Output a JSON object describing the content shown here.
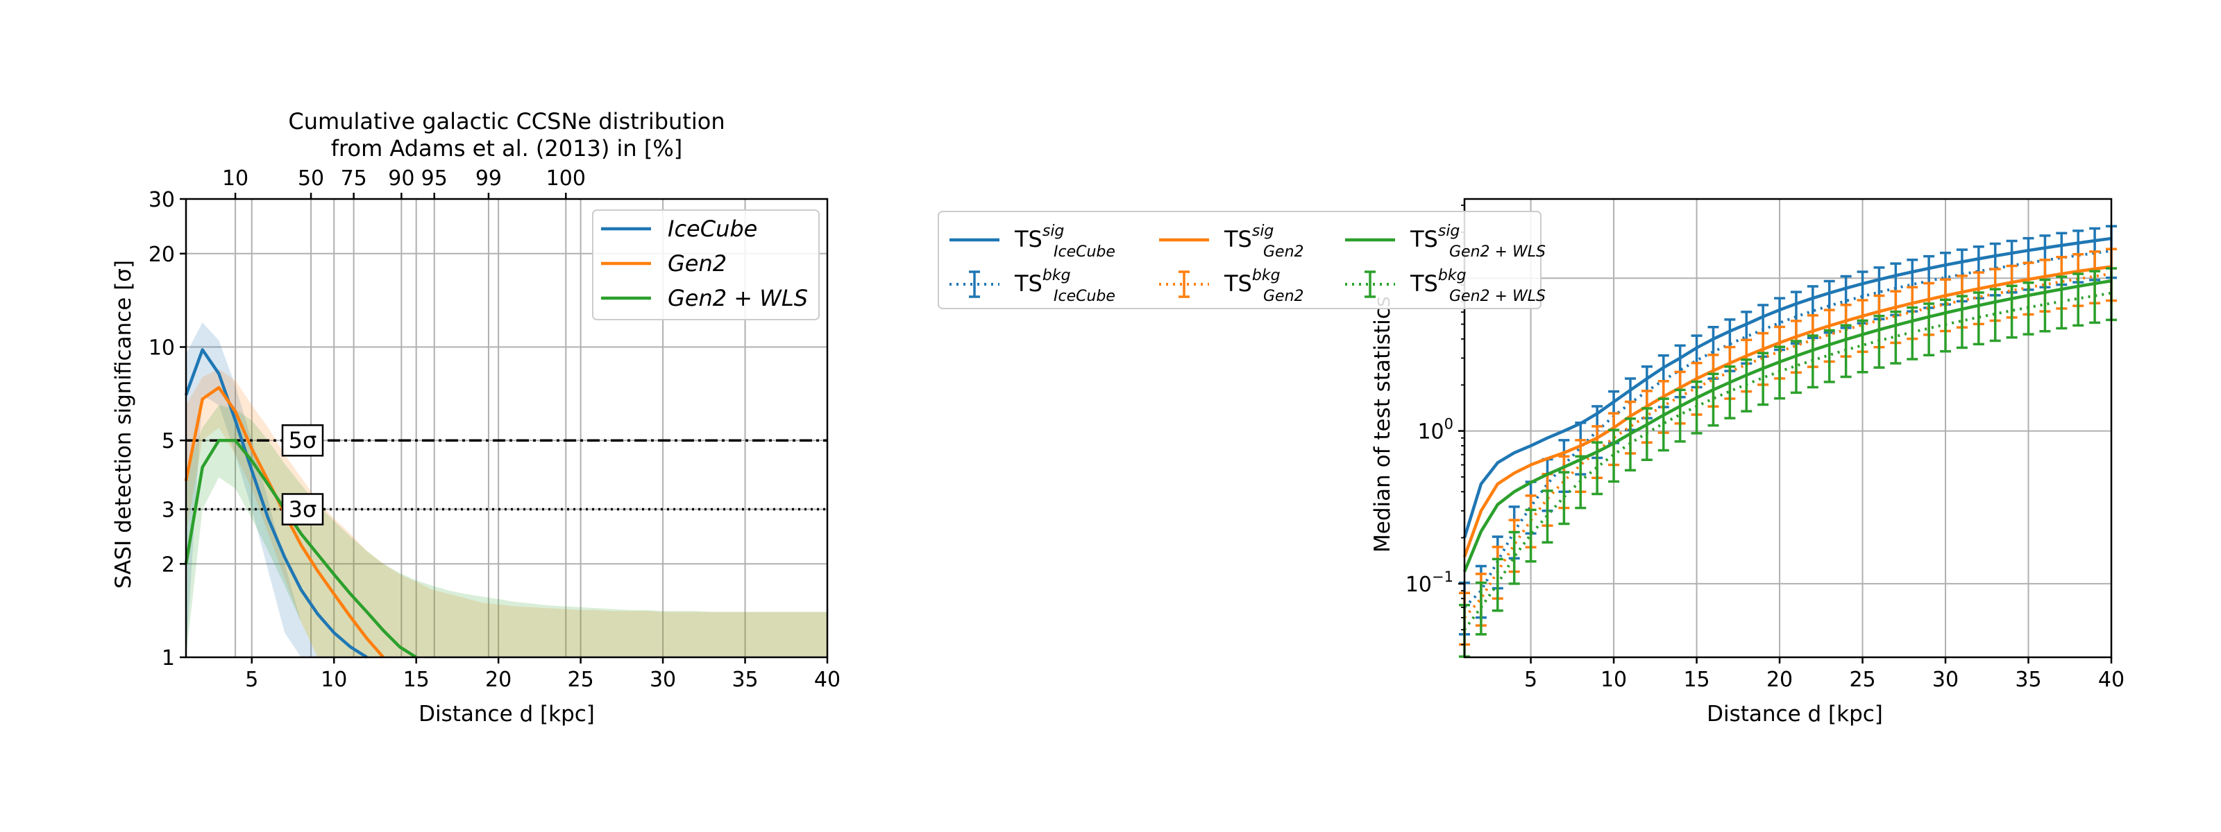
{
  "chart_data": [
    {
      "type": "line",
      "top_axis_label_line1": "Cumulative galactic CCSNe distribution",
      "top_axis_label_line2": "from Adams et al. (2013) in [%]",
      "top_tick_labels": [
        {
          "label": "10",
          "x": 4
        },
        {
          "label": "50",
          "x": 8.6
        },
        {
          "label": "75",
          "x": 11.2
        },
        {
          "label": "90",
          "x": 14.1
        },
        {
          "label": "95",
          "x": 16.1
        },
        {
          "label": "99",
          "x": 19.4
        },
        {
          "label": "100",
          "x": 24.1
        }
      ],
      "xlabel": "Distance d [kpc]",
      "ylabel": "SASI detection significance [σ]",
      "xlim": [
        1,
        40
      ],
      "ylim": [
        1,
        30
      ],
      "yscale": "log",
      "x_ticks": [
        5,
        10,
        15,
        20,
        25,
        30,
        35,
        40
      ],
      "y_ticks": [
        1,
        2,
        3,
        5,
        10,
        20,
        30
      ],
      "grid": true,
      "legend_position": "top-right",
      "thresholds": [
        {
          "label": "5σ",
          "value": 5,
          "style": "dashdot"
        },
        {
          "label": "3σ",
          "value": 3,
          "style": "dotted"
        }
      ],
      "series": [
        {
          "name": "IceCube",
          "color": "#1f77b4",
          "x": [
            1,
            2,
            3,
            4,
            5,
            6,
            7,
            8,
            9,
            10,
            11,
            12
          ],
          "y": [
            7.0,
            9.8,
            8.2,
            5.8,
            4.0,
            2.8,
            2.1,
            1.65,
            1.38,
            1.2,
            1.08,
            1.0
          ],
          "band_upper": [
            9.5,
            12.0,
            10.5,
            7.5,
            5.0,
            3.2,
            2.0,
            1.3,
            1.0
          ],
          "band_lower": [
            1.0,
            7.0,
            6.5,
            4.5,
            3.0,
            1.9,
            1.2,
            1.0,
            1.0
          ]
        },
        {
          "name": "Gen2",
          "color": "#ff7f0e",
          "x": [
            1,
            2,
            3,
            4,
            5,
            6,
            7,
            8,
            9,
            10,
            11,
            12,
            13
          ],
          "y": [
            3.7,
            6.8,
            7.4,
            6.2,
            4.7,
            3.7,
            2.9,
            2.3,
            1.9,
            1.6,
            1.35,
            1.15,
            1.0
          ],
          "band_upper": [
            6.5,
            8.0,
            8.5,
            7.8,
            6.5,
            5.5,
            4.5,
            3.8,
            3.2,
            2.8,
            2.5,
            2.2,
            2.0,
            1.85,
            1.75,
            1.65,
            1.6,
            1.55,
            1.5,
            1.48,
            1.46,
            1.45,
            1.44,
            1.43,
            1.42,
            1.42,
            1.41,
            1.41,
            1.41,
            1.4,
            1.4,
            1.4,
            1.4,
            1.4,
            1.4,
            1.4,
            1.4,
            1.4,
            1.4,
            1.4
          ],
          "band_lower": [
            2.5,
            5.0,
            5.5,
            4.5,
            3.5,
            2.5,
            1.8,
            1.3,
            1.0
          ]
        },
        {
          "name": "Gen2 + WLS",
          "color": "#2ca02c",
          "x": [
            1,
            2,
            3,
            4,
            5,
            6,
            7,
            8,
            9,
            10,
            11,
            12,
            13,
            14,
            15
          ],
          "y": [
            2.0,
            4.1,
            5.0,
            5.0,
            4.3,
            3.6,
            3.0,
            2.5,
            2.15,
            1.85,
            1.6,
            1.4,
            1.22,
            1.08,
            1.0
          ],
          "band_upper": [
            4.0,
            5.5,
            6.5,
            6.3,
            5.8,
            5.0,
            4.2,
            3.6,
            3.1,
            2.75,
            2.45,
            2.2,
            2.0,
            1.87,
            1.77,
            1.7,
            1.64,
            1.6,
            1.57,
            1.54,
            1.51,
            1.49,
            1.47,
            1.46,
            1.45,
            1.44,
            1.43,
            1.42,
            1.42,
            1.41,
            1.41,
            1.41,
            1.4,
            1.4,
            1.4,
            1.4,
            1.4,
            1.4,
            1.4,
            1.4
          ],
          "band_lower": [
            1.0,
            3.0,
            3.8,
            3.5,
            2.8,
            2.2,
            1.7,
            1.3,
            1.0
          ]
        }
      ]
    },
    {
      "type": "line",
      "xlabel": "Distance d [kpc]",
      "ylabel": "Median of test statistics",
      "xlim": [
        1,
        40
      ],
      "ylim": [
        0.033,
        33
      ],
      "yscale": "log",
      "x_ticks": [
        5,
        10,
        15,
        20,
        25,
        30,
        35,
        40
      ],
      "y_ticks": [
        {
          "value": 0.1,
          "base": "10",
          "exp": "−1"
        },
        {
          "value": 1,
          "base": "10",
          "exp": "0"
        }
      ],
      "grid": true,
      "legend_position": "outside-left",
      "series": [
        {
          "name": "TS",
          "sup": "sig",
          "sub": "IceCube",
          "kind": "sig",
          "color": "#1f77b4",
          "x": [
            1,
            2,
            3,
            4,
            5,
            6,
            7,
            8,
            9,
            10,
            11,
            12,
            13,
            14,
            15,
            16,
            17,
            18,
            19,
            20,
            21,
            22,
            23,
            24,
            25,
            26,
            27,
            28,
            29,
            30,
            31,
            32,
            33,
            34,
            35,
            36,
            37,
            38,
            39,
            40
          ],
          "y": [
            0.2,
            0.45,
            0.62,
            0.72,
            0.8,
            0.9,
            1.0,
            1.12,
            1.3,
            1.55,
            1.85,
            2.2,
            2.6,
            3.0,
            3.5,
            4.0,
            4.5,
            5.0,
            5.6,
            6.2,
            6.8,
            7.4,
            8.0,
            8.6,
            9.2,
            9.8,
            10.4,
            11.0,
            11.6,
            12.2,
            12.8,
            13.4,
            14.0,
            14.6,
            15.2,
            15.8,
            16.4,
            17.0,
            17.6,
            18.2
          ]
        },
        {
          "name": "TS",
          "sup": "bkg",
          "sub": "IceCube",
          "kind": "bkg",
          "color": "#1f77b4",
          "x": [
            1,
            2,
            3,
            4,
            5,
            6,
            7,
            8,
            9,
            10,
            11,
            12,
            13,
            14,
            15,
            16,
            17,
            18,
            19,
            20,
            21,
            22,
            23,
            24,
            25,
            26,
            27,
            28,
            29,
            30,
            31,
            32,
            33,
            34,
            35,
            36,
            37,
            38,
            39,
            40
          ],
          "y": [
            0.07,
            0.09,
            0.14,
            0.22,
            0.32,
            0.45,
            0.6,
            0.78,
            1.0,
            1.25,
            1.52,
            1.82,
            2.15,
            2.5,
            2.9,
            3.3,
            3.7,
            4.15,
            4.6,
            5.1,
            5.6,
            6.1,
            6.6,
            7.1,
            7.6,
            8.1,
            8.6,
            9.1,
            9.6,
            10.1,
            10.6,
            11.1,
            11.6,
            12.1,
            12.6,
            13.1,
            13.6,
            14.1,
            14.6,
            15.1
          ]
        },
        {
          "name": "TS",
          "sup": "sig",
          "sub": "Gen2",
          "kind": "sig",
          "color": "#ff7f0e",
          "x": [
            1,
            2,
            3,
            4,
            5,
            6,
            7,
            8,
            9,
            10,
            11,
            12,
            13,
            14,
            15,
            16,
            17,
            18,
            19,
            20,
            21,
            22,
            23,
            24,
            25,
            26,
            27,
            28,
            29,
            30,
            31,
            32,
            33,
            34,
            35,
            36,
            37,
            38,
            39,
            40
          ],
          "y": [
            0.15,
            0.3,
            0.45,
            0.53,
            0.6,
            0.66,
            0.72,
            0.8,
            0.9,
            1.05,
            1.25,
            1.45,
            1.68,
            1.92,
            2.2,
            2.48,
            2.78,
            3.1,
            3.43,
            3.78,
            4.14,
            4.5,
            4.88,
            5.26,
            5.65,
            6.05,
            6.45,
            6.86,
            7.27,
            7.69,
            8.11,
            8.53,
            8.96,
            9.39,
            9.82,
            10.25,
            10.68,
            11.1,
            11.5,
            11.9
          ]
        },
        {
          "name": "TS",
          "sup": "bkg",
          "sub": "Gen2",
          "kind": "bkg",
          "color": "#ff7f0e",
          "x": [
            1,
            2,
            3,
            4,
            5,
            6,
            7,
            8,
            9,
            10,
            11,
            12,
            13,
            14,
            15,
            16,
            17,
            18,
            19,
            20,
            21,
            22,
            23,
            24,
            25,
            26,
            27,
            28,
            29,
            30,
            31,
            32,
            33,
            34,
            35,
            36,
            37,
            38,
            39,
            40
          ],
          "y": [
            0.06,
            0.08,
            0.12,
            0.18,
            0.26,
            0.36,
            0.47,
            0.6,
            0.74,
            0.9,
            1.07,
            1.26,
            1.46,
            1.68,
            1.92,
            2.17,
            2.44,
            2.72,
            3.01,
            3.31,
            3.62,
            3.94,
            4.27,
            4.61,
            4.95,
            5.3,
            5.66,
            6.02,
            6.39,
            6.76,
            7.14,
            7.52,
            7.91,
            8.3,
            8.69,
            9.09,
            9.49,
            9.89,
            10.3,
            10.7
          ]
        },
        {
          "name": "TS",
          "sup": "sig",
          "sub": "Gen2 + WLS",
          "kind": "sig",
          "color": "#2ca02c",
          "x": [
            1,
            2,
            3,
            4,
            5,
            6,
            7,
            8,
            9,
            10,
            11,
            12,
            13,
            14,
            15,
            16,
            17,
            18,
            19,
            20,
            21,
            22,
            23,
            24,
            25,
            26,
            27,
            28,
            29,
            30,
            31,
            32,
            33,
            34,
            35,
            36,
            37,
            38,
            39,
            40
          ],
          "y": [
            0.12,
            0.22,
            0.33,
            0.4,
            0.46,
            0.52,
            0.58,
            0.65,
            0.73,
            0.83,
            0.96,
            1.1,
            1.27,
            1.45,
            1.65,
            1.86,
            2.08,
            2.32,
            2.57,
            2.83,
            3.1,
            3.38,
            3.67,
            3.97,
            4.28,
            4.6,
            4.92,
            5.25,
            5.59,
            5.93,
            6.28,
            6.63,
            6.99,
            7.35,
            7.72,
            8.09,
            8.47,
            8.85,
            9.23,
            9.6
          ]
        },
        {
          "name": "TS",
          "sup": "bkg",
          "sub": "Gen2 + WLS",
          "kind": "bkg",
          "color": "#2ca02c",
          "x": [
            1,
            2,
            3,
            4,
            5,
            6,
            7,
            8,
            9,
            10,
            11,
            12,
            13,
            14,
            15,
            16,
            17,
            18,
            19,
            20,
            21,
            22,
            23,
            24,
            25,
            26,
            27,
            28,
            29,
            30,
            31,
            32,
            33,
            34,
            35,
            36,
            37,
            38,
            39,
            40
          ],
          "y": [
            0.05,
            0.07,
            0.1,
            0.15,
            0.21,
            0.28,
            0.37,
            0.47,
            0.58,
            0.7,
            0.83,
            0.97,
            1.12,
            1.28,
            1.45,
            1.63,
            1.82,
            2.02,
            2.23,
            2.45,
            2.67,
            2.9,
            3.14,
            3.39,
            3.64,
            3.9,
            4.16,
            4.43,
            4.7,
            4.98,
            5.26,
            5.55,
            5.84,
            6.14,
            6.44,
            6.74,
            7.05,
            7.36,
            7.67,
            8.0
          ]
        }
      ]
    }
  ]
}
